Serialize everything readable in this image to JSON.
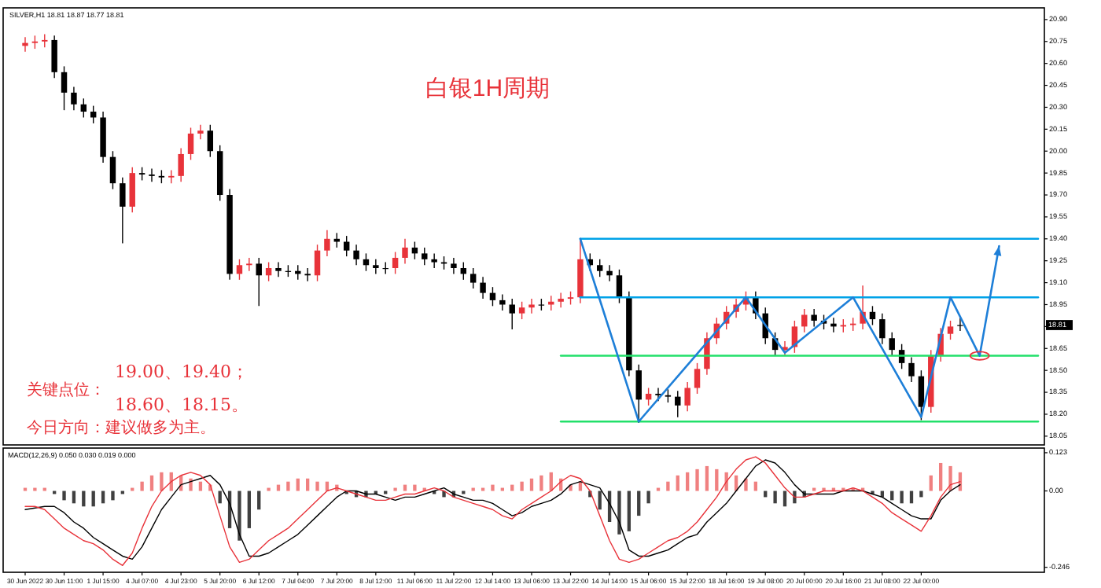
{
  "chart_data": [
    {
      "type": "candlestick",
      "title": "白银1H周期",
      "subtitle": "SILVER,H1 18.81 18.87 18.77 18.81",
      "categories": [
        null,
        null,
        null,
        null,
        null,
        null,
        null,
        null,
        null,
        null,
        null,
        null,
        null,
        null,
        null,
        null,
        null,
        null,
        null,
        null,
        null,
        null,
        null,
        null,
        null,
        null,
        null,
        null,
        null,
        null,
        null,
        null,
        null,
        null,
        null,
        null,
        null,
        null,
        null,
        null,
        null,
        null,
        null,
        null,
        null,
        null,
        null,
        null,
        null,
        null,
        null,
        null,
        null,
        null,
        null,
        null,
        null,
        null,
        null,
        null,
        null,
        null,
        null,
        null,
        null,
        null,
        null,
        null,
        null,
        null,
        null,
        null,
        null,
        null,
        null,
        null,
        null,
        null,
        null,
        null,
        null,
        null,
        null,
        null,
        null,
        null,
        null,
        null,
        null,
        null,
        null,
        null,
        null,
        null,
        null,
        null,
        null,
        null,
        null,
        null,
        null,
        null,
        null,
        null,
        null
      ],
      "ohlc": [
        [
          20.72,
          20.78,
          20.68,
          20.74
        ],
        [
          20.74,
          20.79,
          20.7,
          20.75
        ],
        [
          20.75,
          20.8,
          20.71,
          20.76
        ],
        [
          20.76,
          20.79,
          20.5,
          20.54
        ],
        [
          20.54,
          20.58,
          20.28,
          20.4
        ],
        [
          20.4,
          20.44,
          20.28,
          20.32
        ],
        [
          20.32,
          20.36,
          20.23,
          20.27
        ],
        [
          20.27,
          20.31,
          20.19,
          20.23
        ],
        [
          20.23,
          20.27,
          19.92,
          19.96
        ],
        [
          19.96,
          20.0,
          19.74,
          19.78
        ],
        [
          19.78,
          19.82,
          19.37,
          19.62
        ],
        [
          19.62,
          19.89,
          19.58,
          19.85
        ],
        [
          19.85,
          19.89,
          19.8,
          19.84
        ],
        [
          19.84,
          19.88,
          19.79,
          19.83
        ],
        [
          19.83,
          19.87,
          19.78,
          19.82
        ],
        [
          19.82,
          19.87,
          19.78,
          19.83
        ],
        [
          19.83,
          20.02,
          19.79,
          19.98
        ],
        [
          19.98,
          20.16,
          19.94,
          20.12
        ],
        [
          20.12,
          20.18,
          20.08,
          20.14
        ],
        [
          20.14,
          20.18,
          19.96,
          20.0
        ],
        [
          20.0,
          20.04,
          19.66,
          19.7
        ],
        [
          19.7,
          19.74,
          19.12,
          19.16
        ],
        [
          19.16,
          19.26,
          19.12,
          19.22
        ],
        [
          19.22,
          19.27,
          19.18,
          19.23
        ],
        [
          19.23,
          19.27,
          18.94,
          19.15
        ],
        [
          19.15,
          19.24,
          19.11,
          19.2
        ],
        [
          19.2,
          19.24,
          19.14,
          19.18
        ],
        [
          19.18,
          19.22,
          19.14,
          19.18
        ],
        [
          19.18,
          19.22,
          19.12,
          19.16
        ],
        [
          19.16,
          19.2,
          19.11,
          19.15
        ],
        [
          19.15,
          19.36,
          19.11,
          19.32
        ],
        [
          19.32,
          19.46,
          19.28,
          19.4
        ],
        [
          19.4,
          19.44,
          19.34,
          19.38
        ],
        [
          19.38,
          19.42,
          19.28,
          19.32
        ],
        [
          19.32,
          19.36,
          19.22,
          19.26
        ],
        [
          19.26,
          19.3,
          19.18,
          19.22
        ],
        [
          19.22,
          19.26,
          19.16,
          19.2
        ],
        [
          19.2,
          19.24,
          19.16,
          19.2
        ],
        [
          19.2,
          19.31,
          19.16,
          19.27
        ],
        [
          19.27,
          19.4,
          19.23,
          19.34
        ],
        [
          19.34,
          19.38,
          19.26,
          19.3
        ],
        [
          19.3,
          19.34,
          19.22,
          19.26
        ],
        [
          19.26,
          19.3,
          19.2,
          19.24
        ],
        [
          19.24,
          19.28,
          19.19,
          19.23
        ],
        [
          19.23,
          19.27,
          19.16,
          19.2
        ],
        [
          19.2,
          19.24,
          19.12,
          19.16
        ],
        [
          19.16,
          19.2,
          19.06,
          19.1
        ],
        [
          19.1,
          19.14,
          18.99,
          19.03
        ],
        [
          19.03,
          19.07,
          18.94,
          18.98
        ],
        [
          18.98,
          19.02,
          18.91,
          18.95
        ],
        [
          18.95,
          18.99,
          18.78,
          18.89
        ],
        [
          18.89,
          18.97,
          18.85,
          18.93
        ],
        [
          18.93,
          18.99,
          18.89,
          18.95
        ],
        [
          18.95,
          18.99,
          18.91,
          18.95
        ],
        [
          18.95,
          19.01,
          18.91,
          18.97
        ],
        [
          18.97,
          19.03,
          18.93,
          18.99
        ],
        [
          18.99,
          19.04,
          18.95,
          19.0
        ],
        [
          19.0,
          19.4,
          18.96,
          19.26
        ],
        [
          19.26,
          19.3,
          19.18,
          19.22
        ],
        [
          19.22,
          19.26,
          19.14,
          19.18
        ],
        [
          19.18,
          19.22,
          19.11,
          19.15
        ],
        [
          19.15,
          19.19,
          18.96,
          19.0
        ],
        [
          19.0,
          19.04,
          18.46,
          18.5
        ],
        [
          18.5,
          18.54,
          18.14,
          18.3
        ],
        [
          18.3,
          18.38,
          18.26,
          18.34
        ],
        [
          18.34,
          18.38,
          18.29,
          18.33
        ],
        [
          18.33,
          18.37,
          18.28,
          18.32
        ],
        [
          18.32,
          18.36,
          18.18,
          18.26
        ],
        [
          18.26,
          18.42,
          18.22,
          18.38
        ],
        [
          18.38,
          18.55,
          18.34,
          18.51
        ],
        [
          18.51,
          18.76,
          18.47,
          18.72
        ],
        [
          18.72,
          18.86,
          18.68,
          18.82
        ],
        [
          18.82,
          18.94,
          18.78,
          18.9
        ],
        [
          18.9,
          18.99,
          18.86,
          18.95
        ],
        [
          18.95,
          19.04,
          18.91,
          19.0
        ],
        [
          19.0,
          19.04,
          18.85,
          18.89
        ],
        [
          18.89,
          18.93,
          18.68,
          18.72
        ],
        [
          18.72,
          18.76,
          18.6,
          18.64
        ],
        [
          18.64,
          18.7,
          18.6,
          18.66
        ],
        [
          18.66,
          18.84,
          18.62,
          18.8
        ],
        [
          18.8,
          18.92,
          18.76,
          18.88
        ],
        [
          18.88,
          18.92,
          18.8,
          18.84
        ],
        [
          18.84,
          18.88,
          18.78,
          18.82
        ],
        [
          18.82,
          18.86,
          18.76,
          18.8
        ],
        [
          18.8,
          18.85,
          18.76,
          18.81
        ],
        [
          18.81,
          18.86,
          18.77,
          18.82
        ],
        [
          18.82,
          19.08,
          18.78,
          18.9
        ],
        [
          18.9,
          18.94,
          18.81,
          18.85
        ],
        [
          18.85,
          18.89,
          18.68,
          18.72
        ],
        [
          18.72,
          18.76,
          18.6,
          18.64
        ],
        [
          18.64,
          18.68,
          18.51,
          18.55
        ],
        [
          18.55,
          18.59,
          18.42,
          18.46
        ],
        [
          18.46,
          18.5,
          18.16,
          18.25
        ],
        [
          18.25,
          18.64,
          18.21,
          18.6
        ],
        [
          18.6,
          18.79,
          18.56,
          18.75
        ],
        [
          18.75,
          18.84,
          18.71,
          18.8
        ],
        [
          18.81,
          18.87,
          18.77,
          18.81
        ],
        null,
        null,
        null,
        null,
        null,
        null,
        null,
        null
      ],
      "colors": [
        "#e8333a",
        "#e8333a",
        "#e8333a",
        "#000000",
        "#000000",
        "#000000",
        "#000000",
        "#000000",
        "#000000",
        "#000000",
        "#000000",
        "#e8333a",
        "#000000",
        "#000000",
        "#000000",
        "#e8333a",
        "#e8333a",
        "#e8333a",
        "#e8333a",
        "#000000",
        "#000000",
        "#000000",
        "#e8333a",
        "#e8333a",
        "#000000",
        "#e8333a",
        "#000000",
        "#000000",
        "#000000",
        "#000000",
        "#e8333a",
        "#e8333a",
        "#000000",
        "#000000",
        "#000000",
        "#000000",
        "#000000",
        "#000000",
        "#e8333a",
        "#e8333a",
        "#000000",
        "#000000",
        "#000000",
        "#000000",
        "#000000",
        "#000000",
        "#000000",
        "#000000",
        "#000000",
        "#000000",
        "#000000",
        "#e8333a",
        "#e8333a",
        "#000000",
        "#e8333a",
        "#e8333a",
        "#e8333a",
        "#e8333a",
        "#000000",
        "#000000",
        "#000000",
        "#000000",
        "#000000",
        "#000000",
        "#e8333a",
        "#000000",
        "#000000",
        "#000000",
        "#e8333a",
        "#e8333a",
        "#e8333a",
        "#e8333a",
        "#e8333a",
        "#e8333a",
        "#e8333a",
        "#000000",
        "#000000",
        "#000000",
        "#e8333a",
        "#e8333a",
        "#e8333a",
        "#000000",
        "#000000",
        "#000000",
        "#e8333a",
        "#e8333a",
        "#e8333a",
        "#000000",
        "#000000",
        "#000000",
        "#000000",
        "#000000",
        "#000000",
        "#e8333a",
        "#e8333a",
        "#e8333a",
        "#000000",
        null,
        null,
        null,
        null,
        null,
        null,
        null,
        null
      ],
      "series": [
        {
          "type": "line",
          "color": "#00a2e8",
          "values": [
            null,
            null,
            null,
            null,
            null,
            null,
            null,
            null,
            null,
            null,
            null,
            null,
            null,
            null,
            null,
            null,
            null,
            null,
            null,
            null,
            null,
            null,
            null,
            null,
            null,
            null,
            null,
            null,
            null,
            null,
            null,
            null,
            null,
            null,
            null,
            null,
            null,
            null,
            null,
            null,
            null,
            null,
            null,
            null,
            null,
            null,
            null,
            null,
            null,
            null,
            null,
            null,
            null,
            null,
            null,
            null,
            null,
            19.4,
            null,
            null,
            null,
            null,
            null,
            null,
            null,
            null,
            null,
            null,
            null,
            null,
            null,
            null,
            null,
            null,
            null,
            null,
            null,
            null,
            null,
            null,
            null,
            null,
            null,
            null,
            null,
            null,
            null,
            null,
            null,
            null,
            null,
            null,
            null,
            null,
            null,
            null,
            null,
            null,
            null,
            null,
            null,
            null,
            null,
            null,
            19.4
          ]
        },
        {
          "type": "line",
          "color": "#00a2e8",
          "values": [
            null,
            null,
            null,
            null,
            null,
            null,
            null,
            null,
            null,
            null,
            null,
            null,
            null,
            null,
            null,
            null,
            null,
            null,
            null,
            null,
            null,
            null,
            null,
            null,
            null,
            null,
            null,
            null,
            null,
            null,
            null,
            null,
            null,
            null,
            null,
            null,
            null,
            null,
            null,
            null,
            null,
            null,
            null,
            null,
            null,
            null,
            null,
            null,
            null,
            null,
            null,
            null,
            null,
            null,
            null,
            null,
            null,
            19.0,
            null,
            null,
            null,
            null,
            null,
            null,
            null,
            null,
            null,
            null,
            null,
            null,
            null,
            null,
            null,
            null,
            null,
            null,
            null,
            null,
            null,
            null,
            null,
            null,
            null,
            null,
            null,
            null,
            null,
            null,
            null,
            null,
            null,
            null,
            null,
            null,
            null,
            null,
            null,
            null,
            null,
            null,
            null,
            null,
            null,
            null,
            19.0
          ]
        },
        {
          "type": "line",
          "color": "#22e06a",
          "values": [
            null,
            null,
            null,
            null,
            null,
            null,
            null,
            null,
            null,
            null,
            null,
            null,
            null,
            null,
            null,
            null,
            null,
            null,
            null,
            null,
            null,
            null,
            null,
            null,
            null,
            null,
            null,
            null,
            null,
            null,
            null,
            null,
            null,
            null,
            null,
            null,
            null,
            null,
            null,
            null,
            null,
            null,
            null,
            null,
            null,
            null,
            null,
            null,
            null,
            null,
            null,
            null,
            null,
            null,
            null,
            18.6,
            null,
            null,
            null,
            null,
            null,
            null,
            null,
            null,
            null,
            null,
            null,
            null,
            null,
            null,
            null,
            null,
            null,
            null,
            null,
            null,
            null,
            null,
            null,
            null,
            null,
            null,
            null,
            null,
            null,
            null,
            null,
            null,
            null,
            null,
            null,
            null,
            null,
            null,
            null,
            null,
            null,
            null,
            null,
            null,
            null,
            null,
            null,
            null,
            18.6
          ]
        },
        {
          "type": "line",
          "color": "#22e06a",
          "values": [
            null,
            null,
            null,
            null,
            null,
            null,
            null,
            null,
            null,
            null,
            null,
            null,
            null,
            null,
            null,
            null,
            null,
            null,
            null,
            null,
            null,
            null,
            null,
            null,
            null,
            null,
            null,
            null,
            null,
            null,
            null,
            null,
            null,
            null,
            null,
            null,
            null,
            null,
            null,
            null,
            null,
            null,
            null,
            null,
            null,
            null,
            null,
            null,
            null,
            null,
            null,
            null,
            null,
            null,
            null,
            18.15,
            null,
            null,
            null,
            null,
            null,
            null,
            null,
            null,
            null,
            null,
            null,
            null,
            null,
            null,
            null,
            null,
            null,
            null,
            null,
            null,
            null,
            null,
            null,
            null,
            null,
            null,
            null,
            null,
            null,
            null,
            null,
            null,
            null,
            null,
            null,
            null,
            null,
            null,
            null,
            null,
            null,
            null,
            null,
            null,
            null,
            null,
            null,
            null,
            18.15
          ]
        },
        {
          "type": "line",
          "color": "#1e7fd8",
          "values": [
            null,
            null,
            null,
            null,
            null,
            null,
            null,
            null,
            null,
            null,
            null,
            null,
            null,
            null,
            null,
            null,
            null,
            null,
            null,
            null,
            null,
            null,
            null,
            null,
            null,
            null,
            null,
            null,
            null,
            null,
            null,
            null,
            null,
            null,
            null,
            null,
            null,
            null,
            null,
            null,
            null,
            null,
            null,
            null,
            null,
            null,
            null,
            null,
            null,
            null,
            null,
            null,
            null,
            null,
            null,
            null,
            null,
            19.4,
            null,
            null,
            null,
            null,
            null,
            18.15,
            null,
            null,
            null,
            null,
            null,
            null,
            null,
            null,
            null,
            null,
            19.0,
            null,
            null,
            null,
            18.62,
            null,
            null,
            null,
            null,
            null,
            null,
            19.0,
            null,
            null,
            null,
            null,
            null,
            null,
            18.18,
            null,
            null,
            19.0,
            null,
            null,
            18.6,
            null,
            19.35,
            null,
            null,
            null,
            null
          ]
        }
      ],
      "ylim": [
        17.99,
        20.98
      ],
      "yticks": [
        {
          "value": 20.9,
          "label": "20.90"
        },
        20.75,
        {
          "value": 20.6,
          "label": "20.60"
        },
        20.45,
        {
          "value": 20.3,
          "label": "20.30"
        },
        20.15,
        {
          "value": 20.0,
          "label": "20.00"
        },
        19.85,
        {
          "value": 19.7,
          "label": "19.70"
        },
        19.55,
        {
          "value": 19.4,
          "label": "19.40"
        },
        19.25,
        {
          "value": 19.1,
          "label": "19.10"
        },
        18.95,
        {
          "value": 18.8,
          "label": null
        },
        18.65,
        {
          "value": 18.5,
          "label": "18.50"
        },
        18.35,
        {
          "value": 18.2,
          "label": "18.20"
        },
        18.05
      ],
      "tick_labels": "y",
      "annotations": [
        "19.00、19.40；",
        "关键点位：",
        "18.60、18.15。",
        "今日方向：建议做多为主。",
        {
          "text": "18.81",
          "y": 18.81
        }
      ]
    },
    {
      "type": "bar",
      "title": "MACD(12,26,9) 0.050 0.030 0.019 0.000",
      "categories": [
        "30 Jun 2022",
        null,
        null,
        null,
        "30 Jun 11:00",
        null,
        null,
        null,
        "1 Jul 15:00",
        null,
        null,
        null,
        "4 Jul 07:00",
        null,
        null,
        null,
        "4 Jul 23:00",
        null,
        null,
        null,
        "5 Jul 20:00",
        null,
        null,
        null,
        "6 Jul 12:00",
        null,
        null,
        null,
        "7 Jul 04:00",
        null,
        null,
        null,
        "7 Jul 20:00",
        null,
        null,
        null,
        "8 Jul 12:00",
        null,
        null,
        null,
        "11 Jul 06:00",
        null,
        null,
        null,
        "11 Jul 22:00",
        null,
        null,
        null,
        "12 Jul 14:00",
        null,
        null,
        null,
        "13 Jul 06:00",
        null,
        null,
        null,
        "13 Jul 22:00",
        null,
        null,
        null,
        "14 Jul 14:00",
        null,
        null,
        null,
        "15 Jul 06:00",
        null,
        null,
        null,
        "15 Jul 22:00",
        null,
        null,
        null,
        "18 Jul 16:00",
        null,
        null,
        null,
        "19 Jul 08:00",
        null,
        null,
        null,
        "20 Jul 00:00",
        null,
        null,
        null,
        "20 Jul 16:00",
        null,
        null,
        null,
        "21 Jul 08:00",
        null,
        null,
        null,
        "22 Jul 00:00",
        null,
        null,
        null,
        null,
        null,
        null,
        null,
        null,
        null,
        null,
        null,
        null
      ],
      "values": [
        0.01,
        0.01,
        0.01,
        -0.01,
        -0.03,
        -0.04,
        -0.05,
        -0.05,
        -0.04,
        -0.03,
        -0.01,
        0.01,
        0.03,
        0.05,
        0.06,
        0.06,
        0.05,
        0.04,
        0.03,
        0.02,
        -0.04,
        -0.12,
        -0.16,
        -0.12,
        -0.06,
        0.01,
        0.02,
        0.03,
        0.04,
        0.04,
        0.03,
        0.03,
        0.02,
        -0.01,
        -0.02,
        -0.02,
        -0.01,
        -0.01,
        0.01,
        0.02,
        0.02,
        0.01,
        -0.01,
        -0.02,
        -0.02,
        -0.01,
        0.01,
        0.01,
        0.02,
        0.01,
        0.02,
        0.03,
        0.04,
        0.05,
        0.06,
        0.04,
        0.02,
        0.03,
        -0.02,
        -0.06,
        -0.1,
        -0.14,
        -0.13,
        -0.08,
        -0.04,
        0.01,
        0.03,
        0.05,
        0.06,
        0.07,
        0.08,
        0.07,
        0.06,
        0.05,
        0.04,
        0.03,
        -0.02,
        -0.04,
        -0.05,
        -0.04,
        -0.02,
        0.01,
        0.01,
        0.01,
        0.01,
        0.01,
        0.01,
        -0.01,
        -0.02,
        -0.03,
        -0.04,
        -0.04,
        -0.02,
        0.05,
        0.09,
        0.08,
        0.06,
        null,
        null,
        null,
        null,
        null,
        null,
        null,
        null
      ],
      "colors": [
        "#f08080",
        "#f08080",
        "#f08080",
        "#404040",
        "#404040",
        "#404040",
        "#404040",
        "#404040",
        "#404040",
        "#404040",
        "#404040",
        "#f08080",
        "#f08080",
        "#f08080",
        "#f08080",
        "#f08080",
        "#f08080",
        "#f08080",
        "#f08080",
        "#f08080",
        "#404040",
        "#404040",
        "#404040",
        "#404040",
        "#404040",
        "#f08080",
        "#f08080",
        "#f08080",
        "#f08080",
        "#f08080",
        "#f08080",
        "#f08080",
        "#f08080",
        "#404040",
        "#404040",
        "#404040",
        "#404040",
        "#404040",
        "#f08080",
        "#f08080",
        "#f08080",
        "#f08080",
        "#404040",
        "#404040",
        "#404040",
        "#404040",
        "#f08080",
        "#f08080",
        "#f08080",
        "#f08080",
        "#f08080",
        "#f08080",
        "#f08080",
        "#f08080",
        "#f08080",
        "#f08080",
        "#f08080",
        "#f08080",
        "#404040",
        "#404040",
        "#404040",
        "#404040",
        "#404040",
        "#404040",
        "#404040",
        "#f08080",
        "#f08080",
        "#f08080",
        "#f08080",
        "#f08080",
        "#f08080",
        "#f08080",
        "#f08080",
        "#f08080",
        "#f08080",
        "#f08080",
        "#404040",
        "#404040",
        "#404040",
        "#404040",
        "#404040",
        "#f08080",
        "#f08080",
        "#f08080",
        "#f08080",
        "#f08080",
        "#f08080",
        "#404040",
        "#404040",
        "#404040",
        "#404040",
        "#404040",
        "#404040",
        "#f08080",
        "#f08080",
        "#f08080",
        "#f08080",
        null,
        null,
        null,
        null,
        null,
        null,
        null,
        null
      ],
      "series": [
        {
          "type": "line",
          "color": "#000000",
          "values": [
            -0.06,
            -0.055,
            -0.05,
            -0.05,
            -0.07,
            -0.1,
            -0.12,
            -0.15,
            -0.17,
            -0.19,
            -0.21,
            -0.22,
            -0.18,
            -0.12,
            -0.06,
            -0.02,
            0.02,
            0.03,
            0.04,
            0.05,
            0.02,
            -0.04,
            -0.14,
            -0.21,
            -0.21,
            -0.2,
            -0.18,
            -0.16,
            -0.14,
            -0.11,
            -0.08,
            -0.05,
            -0.02,
            0.0,
            0.0,
            -0.01,
            -0.01,
            -0.02,
            -0.03,
            -0.02,
            -0.02,
            -0.01,
            0.0,
            0.01,
            -0.01,
            -0.02,
            -0.03,
            -0.03,
            -0.04,
            -0.06,
            -0.08,
            -0.07,
            -0.05,
            -0.04,
            -0.03,
            -0.01,
            0.02,
            0.03,
            0.02,
            0.01,
            -0.04,
            -0.1,
            -0.19,
            -0.21,
            -0.21,
            -0.2,
            -0.19,
            -0.17,
            -0.15,
            -0.14,
            -0.1,
            -0.07,
            -0.04,
            0.0,
            0.04,
            0.08,
            0.1,
            0.09,
            0.06,
            0.02,
            -0.01,
            -0.01,
            -0.01,
            -0.01,
            0.0,
            0.0,
            0.0,
            -0.01,
            -0.02,
            -0.04,
            -0.06,
            -0.08,
            -0.09,
            -0.09,
            -0.03,
            0.0,
            0.02,
            null,
            null,
            null,
            null,
            null,
            null,
            null,
            null
          ]
        },
        {
          "type": "line",
          "color": "#e8333a",
          "values": [
            -0.05,
            -0.05,
            -0.06,
            -0.09,
            -0.12,
            -0.14,
            -0.16,
            -0.17,
            -0.19,
            -0.22,
            -0.24,
            -0.2,
            -0.12,
            -0.05,
            0.0,
            0.03,
            0.05,
            0.06,
            0.05,
            0.02,
            -0.08,
            -0.18,
            -0.23,
            -0.22,
            -0.19,
            -0.16,
            -0.14,
            -0.12,
            -0.09,
            -0.06,
            -0.03,
            0.0,
            0.01,
            0.0,
            -0.01,
            -0.02,
            -0.03,
            -0.03,
            -0.02,
            -0.01,
            -0.01,
            0.0,
            0.01,
            0.0,
            -0.02,
            -0.03,
            -0.04,
            -0.05,
            -0.06,
            -0.08,
            -0.09,
            -0.06,
            -0.04,
            -0.02,
            0.0,
            0.03,
            0.05,
            0.04,
            0.0,
            -0.08,
            -0.16,
            -0.22,
            -0.23,
            -0.22,
            -0.2,
            -0.18,
            -0.16,
            -0.15,
            -0.13,
            -0.1,
            -0.06,
            -0.02,
            0.03,
            0.07,
            0.1,
            0.11,
            0.09,
            0.05,
            0.01,
            -0.02,
            -0.02,
            -0.01,
            0.0,
            0.0,
            0.0,
            0.01,
            0.0,
            -0.02,
            -0.04,
            -0.07,
            -0.09,
            -0.11,
            -0.13,
            -0.08,
            -0.02,
            0.02,
            0.03,
            null,
            null,
            null,
            null,
            null,
            null,
            null,
            null
          ]
        }
      ],
      "ylim": [
        -0.262,
        0.138
      ],
      "yticks": [
        {
          "value": 0.123,
          "label": "0.123"
        },
        {
          "value": 0,
          "label": "0.00"
        },
        {
          "value": -0.246,
          "label": "-0.246"
        }
      ]
    }
  ]
}
